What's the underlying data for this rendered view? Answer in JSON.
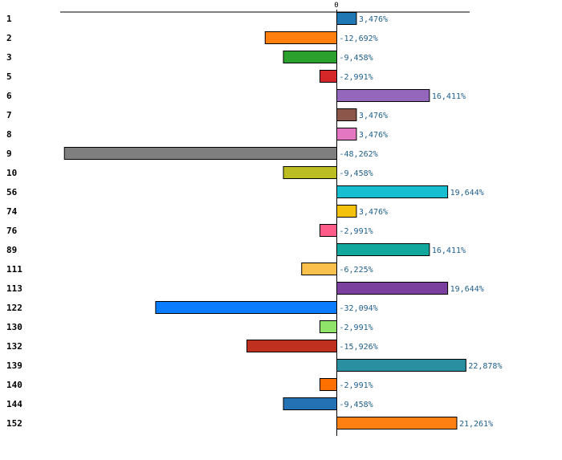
{
  "chart_data": {
    "type": "bar",
    "orientation": "horizontal",
    "title": "",
    "xlabel": "",
    "ylabel": "",
    "zero_tick_label": "0",
    "xlim": [
      -49,
      24
    ],
    "categories": [
      "1",
      "2",
      "3",
      "5",
      "6",
      "7",
      "8",
      "9",
      "10",
      "56",
      "74",
      "76",
      "89",
      "111",
      "113",
      "122",
      "130",
      "132",
      "139",
      "140",
      "144",
      "152"
    ],
    "values": [
      3.476,
      -12.692,
      -9.458,
      -2.991,
      16.411,
      3.476,
      3.476,
      -48.262,
      -9.458,
      19.644,
      3.476,
      -2.991,
      16.411,
      -6.225,
      19.644,
      -32.094,
      -2.991,
      -15.926,
      22.878,
      -2.991,
      -9.458,
      21.261
    ],
    "value_labels": [
      "3,476%",
      "-12,692%",
      "-9,458%",
      "-2,991%",
      "16,411%",
      "3,476%",
      "3,476%",
      "-48,262%",
      "-9,458%",
      "19,644%",
      "3,476%",
      "-2,991%",
      "16,411%",
      "-6,225%",
      "19,644%",
      "-32,094%",
      "-2,991%",
      "-15,926%",
      "22,878%",
      "-2,991%",
      "-9,458%",
      "21,261%"
    ],
    "colors": [
      "#1f77b4",
      "#ff7f0e",
      "#2ca02c",
      "#d62728",
      "#9467bd",
      "#8c564b",
      "#e377c2",
      "#7f7f7f",
      "#bcbd22",
      "#17becf",
      "#f4c20d",
      "#ff5c8a",
      "#13a89e",
      "#fbc04c",
      "#7b3f9e",
      "#0a7cff",
      "#8fe36a",
      "#c0301e",
      "#2a8fa0",
      "#ff7000",
      "#2471b3",
      "#ff8012"
    ],
    "grid": false,
    "legend": "none"
  }
}
